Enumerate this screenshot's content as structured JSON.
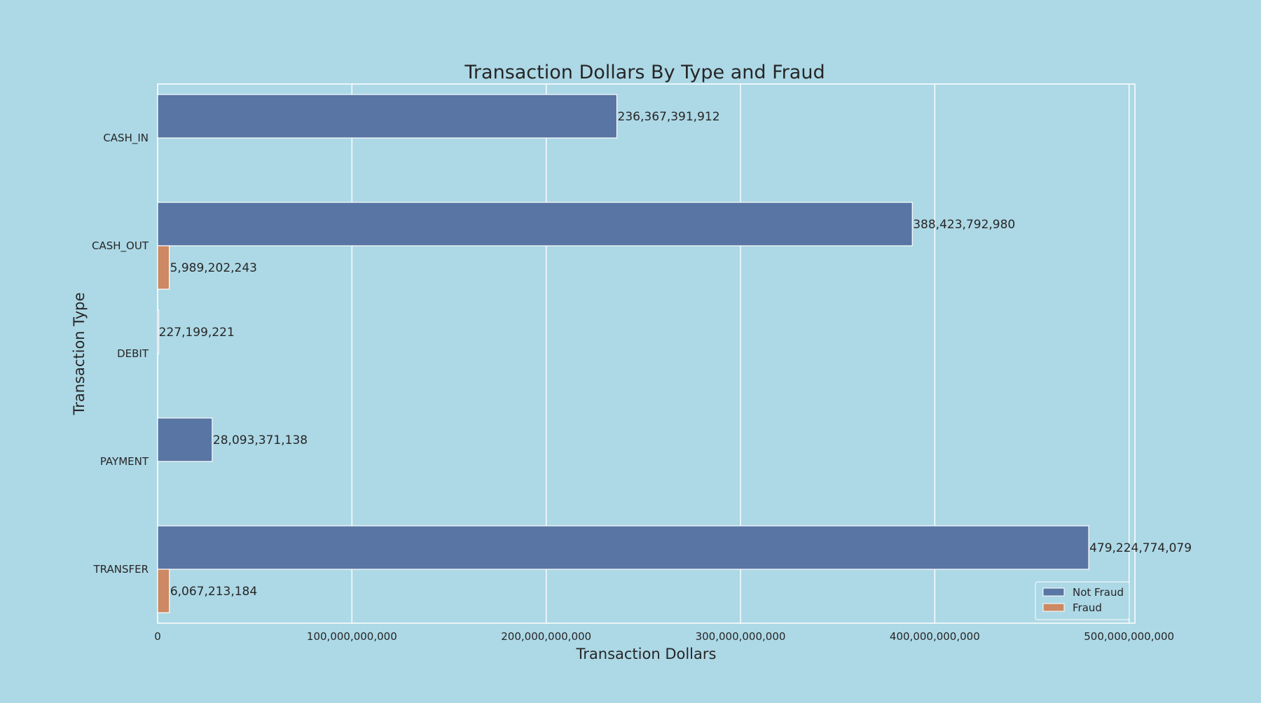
{
  "chart_data": {
    "type": "bar",
    "orientation": "horizontal",
    "title": "Transaction Dollars By Type and Fraud",
    "xlabel": "Transaction Dollars",
    "ylabel": "Transaction Type",
    "xlim": [
      0,
      503000000000
    ],
    "xticks": [
      0,
      100000000000,
      200000000000,
      300000000000,
      400000000000,
      500000000000
    ],
    "xtick_labels": [
      "0",
      "100,000,000,000",
      "200,000,000,000",
      "300,000,000,000",
      "400,000,000,000",
      "500,000,000,000"
    ],
    "grid": true,
    "legend_position": "bottom-right",
    "categories": [
      "CASH_IN",
      "CASH_OUT",
      "DEBIT",
      "PAYMENT",
      "TRANSFER"
    ],
    "series": [
      {
        "name": "Not Fraud",
        "color": "#5875a4",
        "values": [
          236367391912,
          388423792980,
          227199221,
          28093371138,
          479224774079
        ],
        "labels": [
          "236,367,391,912",
          "388,423,792,980",
          "227,199,221",
          "28,093,371,138",
          "479,224,774,079"
        ]
      },
      {
        "name": "Fraud",
        "color": "#cc8963",
        "values": [
          0,
          5989202243,
          0,
          0,
          6067213184
        ],
        "labels": [
          "",
          "5,989,202,243",
          "",
          "",
          "6,067,213,184"
        ]
      }
    ]
  }
}
